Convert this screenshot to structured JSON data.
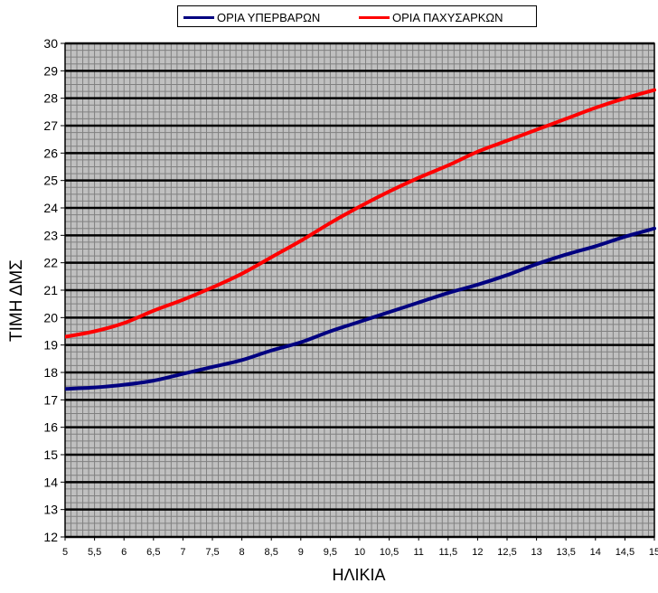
{
  "chart_data": {
    "type": "line",
    "title": "",
    "xlabel": "ΗΛΙΚΙΑ",
    "ylabel": "ΤΙΜΗ  ΔΜΣ",
    "xlim": [
      5,
      15
    ],
    "ylim": [
      12,
      30
    ],
    "x_ticks": [
      "5",
      "5,5",
      "6",
      "6,5",
      "7",
      "7,5",
      "8",
      "8,5",
      "9",
      "9,5",
      "10",
      "10,5",
      "11",
      "11,5",
      "12",
      "12,5",
      "13",
      "13,5",
      "14",
      "14,5",
      "15"
    ],
    "y_ticks": [
      "12",
      "13",
      "14",
      "15",
      "16",
      "17",
      "18",
      "19",
      "20",
      "21",
      "22",
      "23",
      "24",
      "25",
      "26",
      "27",
      "28",
      "29",
      "30"
    ],
    "x": [
      5,
      5.5,
      6,
      6.5,
      7,
      7.5,
      8,
      8.5,
      9,
      9.5,
      10,
      10.5,
      11,
      11.5,
      12,
      12.5,
      13,
      13.5,
      14,
      14.5,
      15
    ],
    "series": [
      {
        "name": "ΟΡΙΑ ΥΠΕΡΒΑΡΩΝ",
        "color": "#000080",
        "values": [
          17.4,
          17.45,
          17.55,
          17.7,
          17.95,
          18.2,
          18.45,
          18.8,
          19.1,
          19.5,
          19.85,
          20.2,
          20.55,
          20.9,
          21.2,
          21.55,
          21.95,
          22.3,
          22.6,
          22.95,
          23.25
        ]
      },
      {
        "name": "ΟΡΙΑ ΠΑΧΥΣΑΡΚΩΝ",
        "color": "#ff0000",
        "values": [
          19.3,
          19.5,
          19.8,
          20.25,
          20.65,
          21.1,
          21.6,
          22.2,
          22.8,
          23.45,
          24.05,
          24.6,
          25.1,
          25.55,
          26.05,
          26.45,
          26.85,
          27.25,
          27.65,
          28.0,
          28.3
        ]
      }
    ],
    "grid": true,
    "legend_position": "top"
  },
  "colors": {
    "plot_background": "#c0c0c0",
    "minor_grid": "#808080",
    "major_grid": "#000000"
  }
}
